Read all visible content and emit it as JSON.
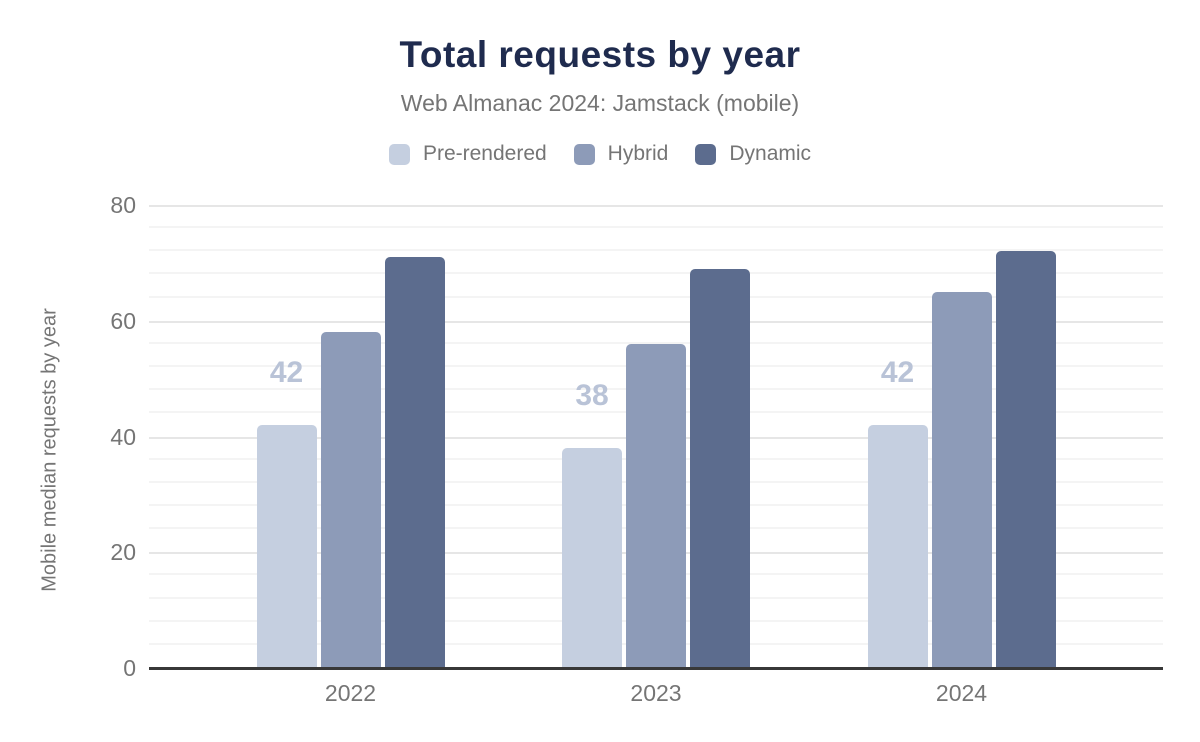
{
  "chart_data": {
    "type": "bar",
    "title": "Total requests by year",
    "subtitle": "Web Almanac 2024: Jamstack (mobile)",
    "xlabel": "",
    "ylabel": "Mobile median requests by year",
    "categories": [
      "2022",
      "2023",
      "2024"
    ],
    "series": [
      {
        "name": "Pre-rendered",
        "color": "#c5cfe0",
        "values": [
          42,
          38,
          42
        ]
      },
      {
        "name": "Hybrid",
        "color": "#8d9bb8",
        "values": [
          58,
          56,
          65
        ]
      },
      {
        "name": "Dynamic",
        "color": "#5c6c8e",
        "values": [
          71,
          69,
          72
        ]
      }
    ],
    "data_labels": {
      "series_index": 0,
      "labels": [
        "42",
        "38",
        "42"
      ]
    },
    "ylim": [
      0,
      80
    ],
    "yticks": [
      0,
      20,
      40,
      60,
      80
    ],
    "minor_grid_step": 4,
    "grid": true,
    "legend_position": "top"
  },
  "colors": {
    "title": "#1f2b4e",
    "axis_text": "#757575",
    "axis_line": "#383838",
    "grid_major": "#e6e6e6",
    "grid_minor": "#f4f4f4",
    "data_label": "#b9c3d7",
    "background": "#ffffff"
  }
}
